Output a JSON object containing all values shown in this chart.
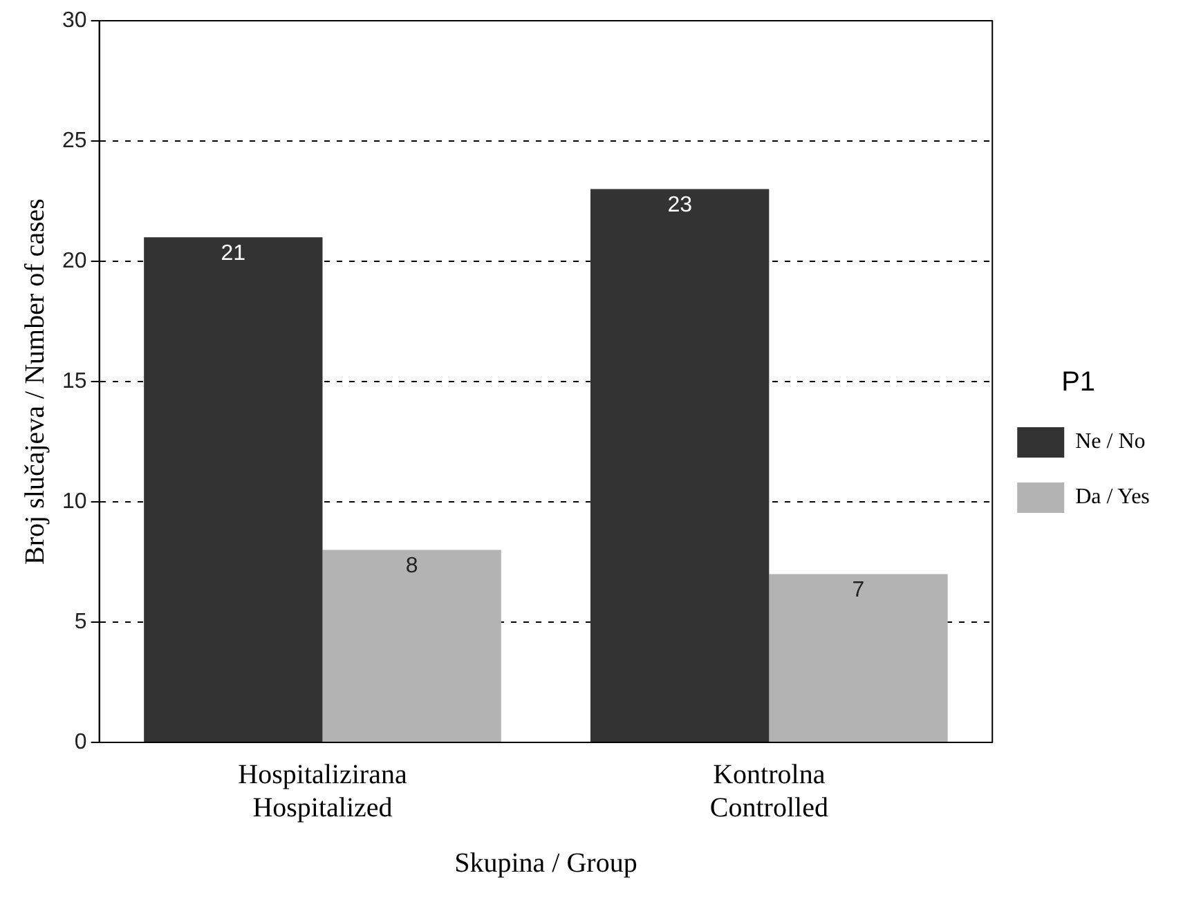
{
  "chart_data": {
    "type": "bar",
    "categories": [
      "Hospitalizirana\nHospitalized",
      "Kontrolna\nControlled"
    ],
    "series": [
      {
        "name": "Ne / No",
        "color": "#333333",
        "values": [
          21,
          23
        ]
      },
      {
        "name": "Da / Yes",
        "color": "#b3b3b3",
        "values": [
          8,
          7
        ]
      }
    ],
    "xlabel": "Skupina / Group",
    "ylabel": "Broj slučajeva / Number of cases",
    "legend_title": "P1",
    "ylim": [
      0,
      30
    ],
    "yticks": [
      0,
      5,
      10,
      15,
      20,
      25,
      30
    ],
    "grid": "y",
    "legend": "right",
    "data_labels": true
  }
}
